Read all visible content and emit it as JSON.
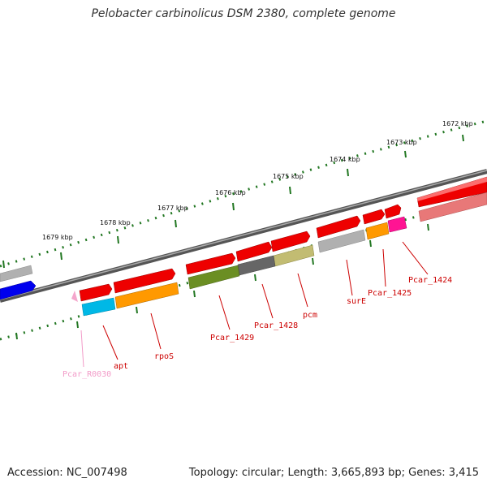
{
  "title": "Pelobacter carbinolicus DSM 2380, complete genome",
  "footer": {
    "accession": "Accession: NC_007498",
    "topology": "Topology: circular; Length: 3,665,893 bp; Genes: 3,415"
  },
  "scale_labels": [
    "1672 kbp",
    "1673 kbp",
    "1674 kbp",
    "1675 kbp",
    "1676 kbp",
    "1677 kbp",
    "1678 kbp",
    "1679 kbp"
  ],
  "gene_labels": [
    "Pcar_1424",
    "Pcar_1425",
    "surE",
    "pcm",
    "Pcar_1428",
    "Pcar_1429",
    "rpoS",
    "apt",
    "Pcar_R0030"
  ],
  "colors": {
    "cds_red": "#ee0000",
    "cds_red_light": "#e87878",
    "gray": "#b0b0b0",
    "dark_gray": "#666666",
    "olive": "#6b8e23",
    "khaki": "#c2bc72",
    "orange": "#ff9900",
    "magenta": "#ff1493",
    "cyan": "#00b8e6",
    "blue": "#0000ee",
    "pink": "#f4a6cc",
    "label_red": "#cc0000",
    "label_pink": "#f29bc8",
    "tick_green": "#227722"
  }
}
